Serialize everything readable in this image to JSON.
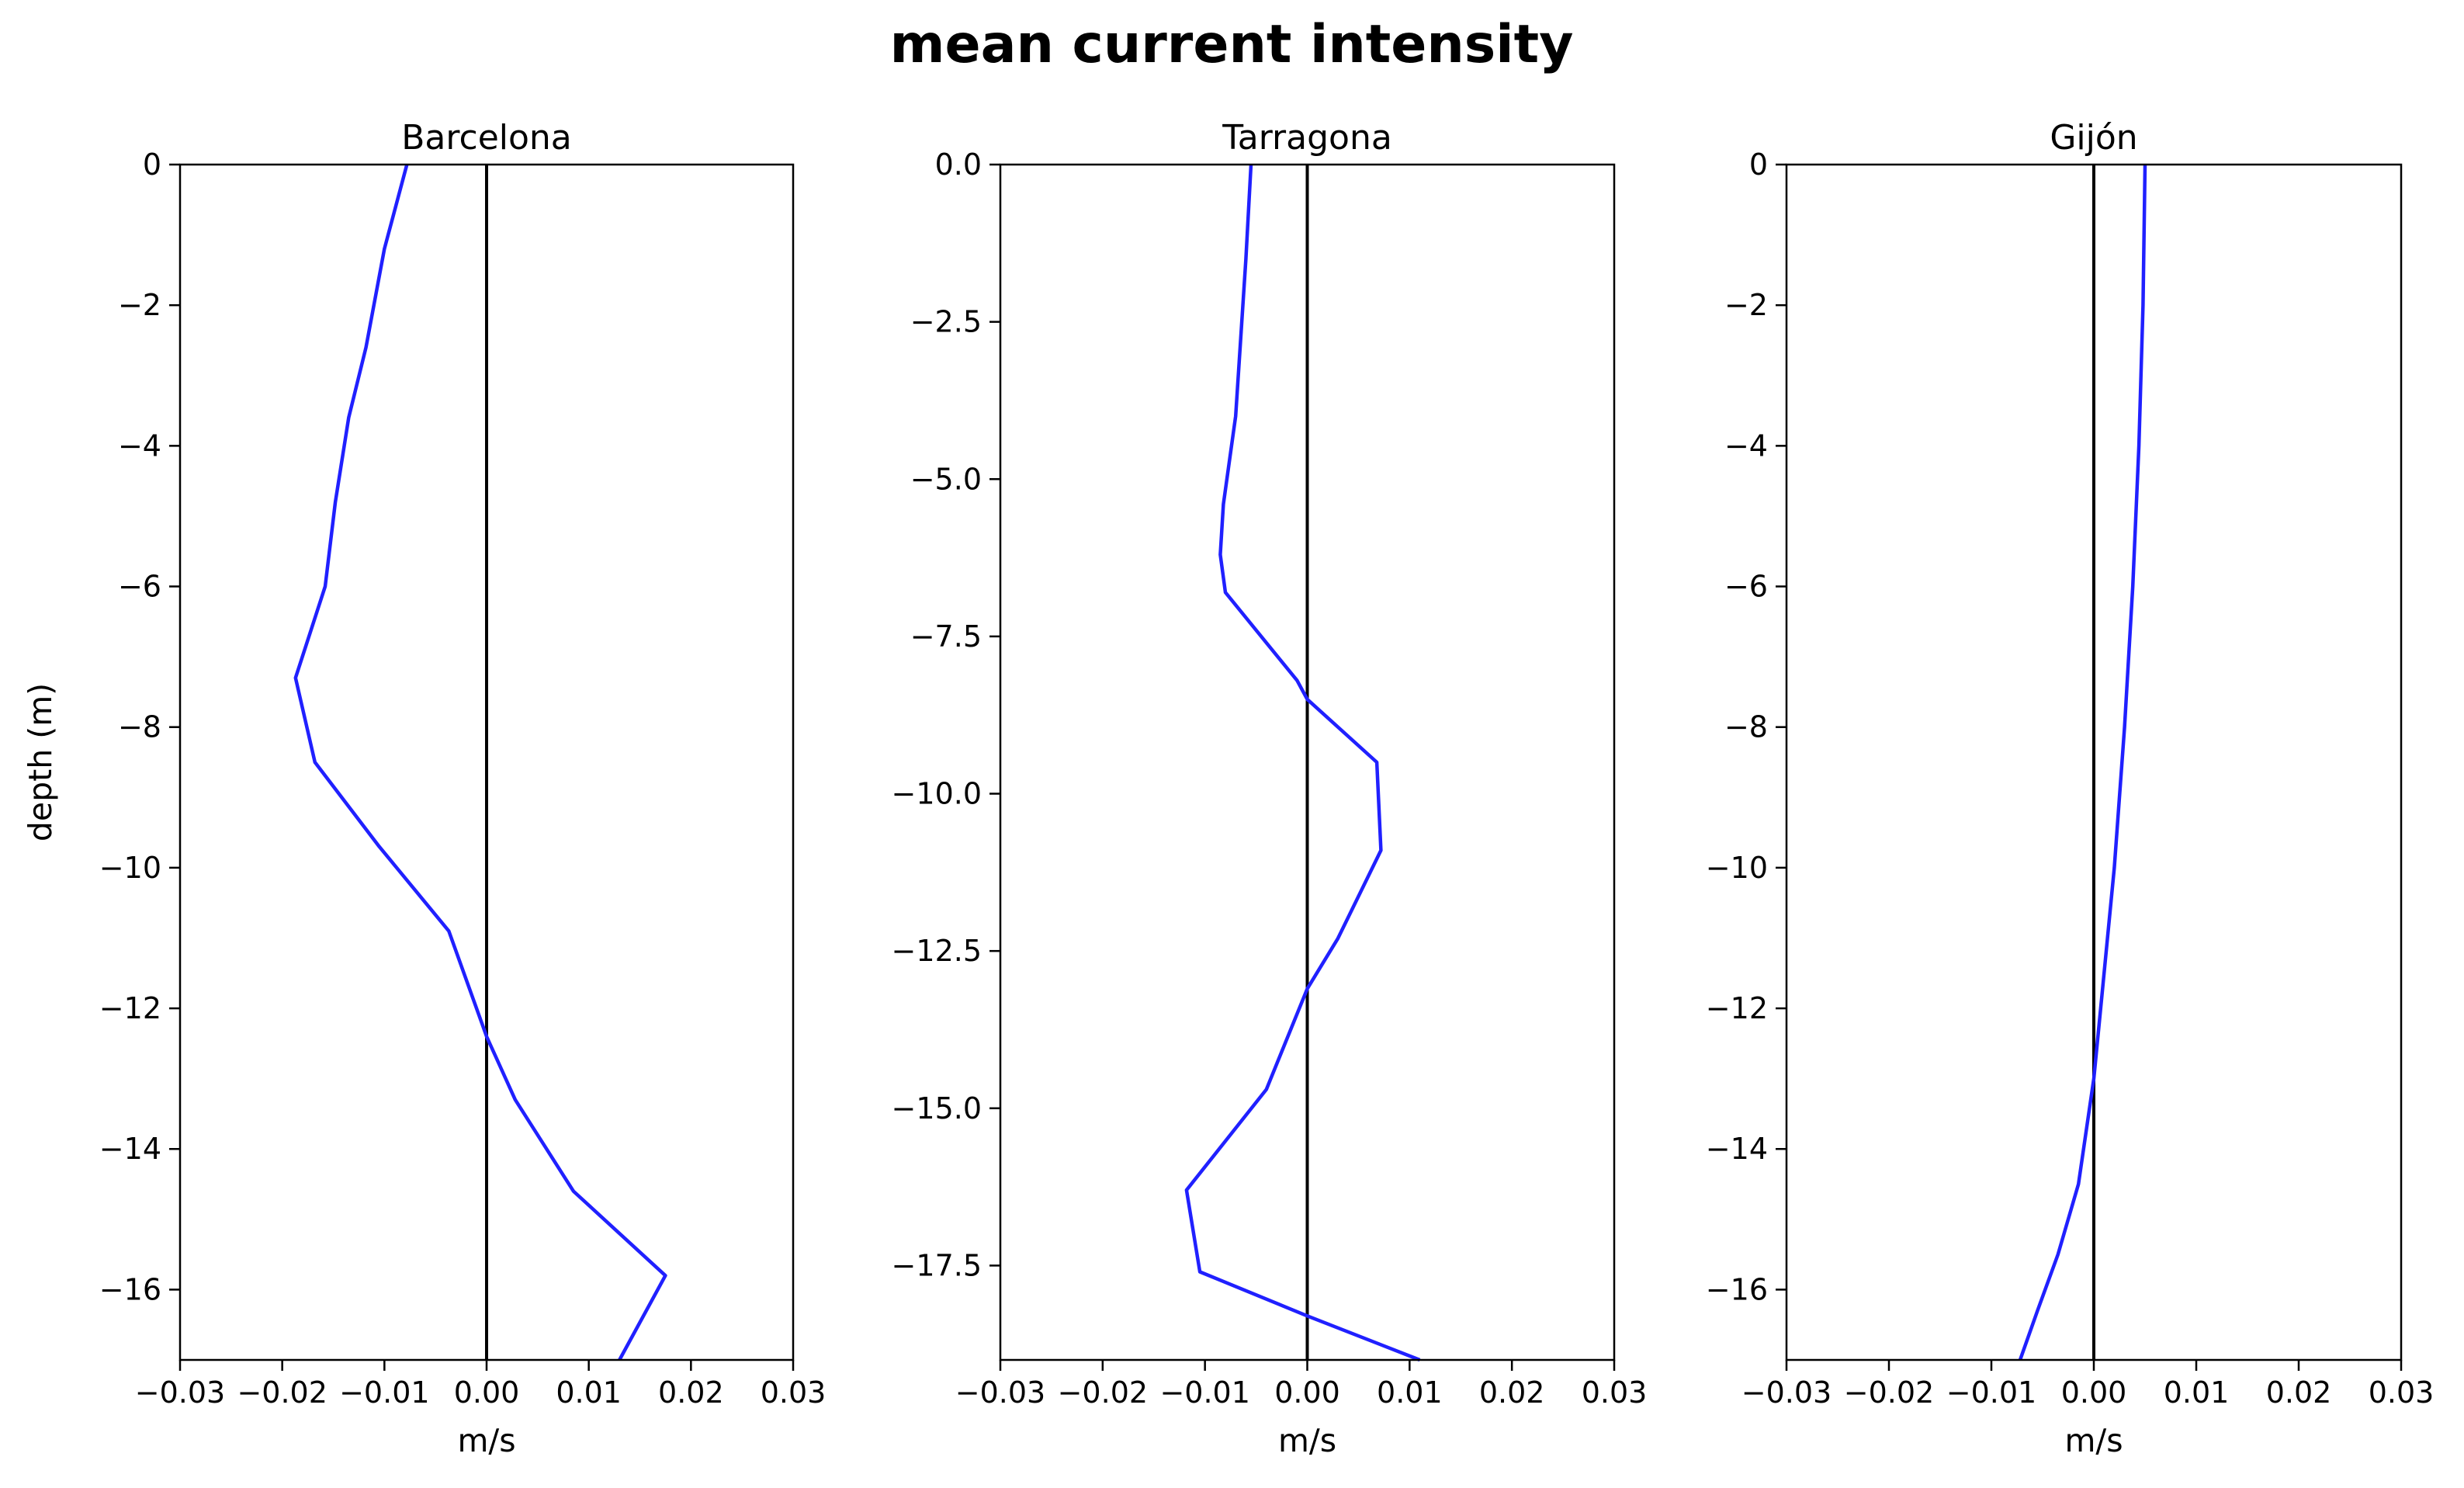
{
  "figure": {
    "title": "mean current intensity"
  },
  "colors": {
    "profile_line": "#2020ff",
    "zero_line": "#000000",
    "frame": "#000000"
  },
  "chart_data": [
    {
      "type": "line",
      "title": "Barcelona",
      "xlabel": "m/s",
      "ylabel": "depth (m)",
      "xlim": [
        -0.03,
        0.03
      ],
      "ylim": [
        -17,
        0
      ],
      "x_ticks": [
        "−0.03",
        "−0.02",
        "−0.01",
        "0.00",
        "0.01",
        "0.02",
        "0.03"
      ],
      "x_tick_values": [
        -0.03,
        -0.02,
        -0.01,
        0.0,
        0.01,
        0.02,
        0.03
      ],
      "y_ticks": [
        "0",
        "−2",
        "−4",
        "−6",
        "−8",
        "−10",
        "−12",
        "−14",
        "−16"
      ],
      "y_tick_values": [
        0,
        -2,
        -4,
        -6,
        -8,
        -10,
        -12,
        -14,
        -16
      ],
      "zero_line": 0,
      "series": [
        {
          "x": [
            -0.0078,
            -0.01,
            -0.0118,
            -0.0135,
            -0.0148,
            -0.0158,
            -0.0187,
            -0.0168,
            -0.0105,
            -0.0037,
            0.0,
            0.0028,
            0.0085,
            0.0175,
            0.013
          ],
          "y": [
            0,
            -1.2,
            -2.6,
            -3.6,
            -4.8,
            -6.0,
            -7.3,
            -8.5,
            -9.7,
            -10.9,
            -12.4,
            -13.3,
            -14.6,
            -15.8,
            -17.0
          ]
        }
      ]
    },
    {
      "type": "line",
      "title": "Tarragona",
      "xlabel": "m/s",
      "ylabel": "",
      "xlim": [
        -0.03,
        0.03
      ],
      "ylim": [
        -19,
        0
      ],
      "x_ticks": [
        "−0.03",
        "−0.02",
        "−0.01",
        "0.00",
        "0.01",
        "0.02",
        "0.03"
      ],
      "x_tick_values": [
        -0.03,
        -0.02,
        -0.01,
        0.0,
        0.01,
        0.02,
        0.03
      ],
      "y_ticks": [
        "0.0",
        "−2.5",
        "−5.0",
        "−7.5",
        "−10.0",
        "−12.5",
        "−15.0",
        "−17.5"
      ],
      "y_tick_values": [
        0,
        -2.5,
        -5.0,
        -7.5,
        -10.0,
        -12.5,
        -15.0,
        -17.5
      ],
      "zero_line": 0,
      "series": [
        {
          "x": [
            -0.0055,
            -0.006,
            -0.007,
            -0.0082,
            -0.0085,
            -0.008,
            -0.001,
            0.0,
            0.0068,
            0.0072,
            0.003,
            0.0,
            -0.004,
            -0.0118,
            -0.0105,
            0.0,
            0.011
          ],
          "y": [
            0,
            -1.5,
            -4.0,
            -5.4,
            -6.2,
            -6.8,
            -8.2,
            -8.5,
            -9.5,
            -10.9,
            -12.3,
            -13.1,
            -14.7,
            -16.3,
            -17.6,
            -18.3,
            -19.0
          ]
        }
      ]
    },
    {
      "type": "line",
      "title": "Gijón",
      "xlabel": "m/s",
      "ylabel": "",
      "xlim": [
        -0.03,
        0.03
      ],
      "ylim": [
        -17,
        0
      ],
      "x_ticks": [
        "−0.03",
        "−0.02",
        "−0.01",
        "0.00",
        "0.01",
        "0.02",
        "0.03"
      ],
      "x_tick_values": [
        -0.03,
        -0.02,
        -0.01,
        0.0,
        0.01,
        0.02,
        0.03
      ],
      "y_ticks": [
        "0",
        "−2",
        "−4",
        "−6",
        "−8",
        "−10",
        "−12",
        "−14",
        "−16"
      ],
      "y_tick_values": [
        0,
        -2,
        -4,
        -6,
        -8,
        -10,
        -12,
        -14,
        -16
      ],
      "zero_line": 0,
      "series": [
        {
          "x": [
            0.005,
            0.0048,
            0.0044,
            0.0038,
            0.003,
            0.002,
            0.0008,
            0.0,
            -0.0015,
            -0.0035,
            -0.0055,
            -0.0072
          ],
          "y": [
            0,
            -2,
            -4,
            -6,
            -8,
            -10,
            -11.8,
            -13.0,
            -14.5,
            -15.5,
            -16.3,
            -17.0
          ]
        }
      ]
    }
  ]
}
